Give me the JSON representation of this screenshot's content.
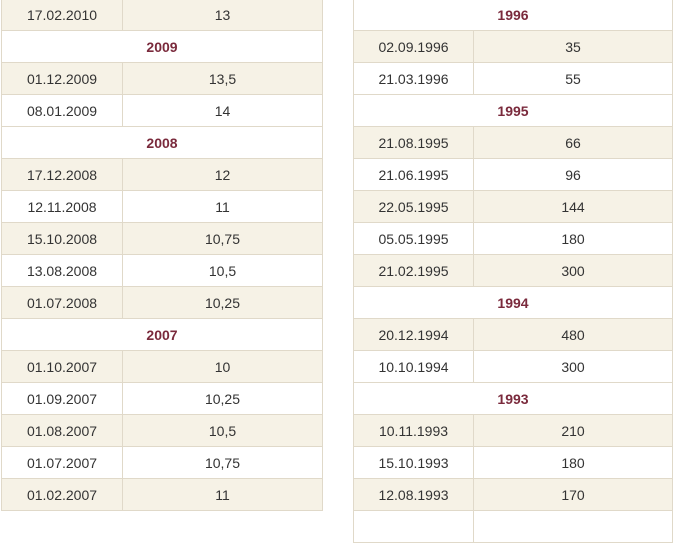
{
  "left_table": [
    {
      "kind": "row",
      "date": "17.02.2010",
      "rate": "13"
    },
    {
      "kind": "year",
      "year": "2009"
    },
    {
      "kind": "row",
      "date": "01.12.2009",
      "rate": "13,5"
    },
    {
      "kind": "row",
      "date": "08.01.2009",
      "rate": "14"
    },
    {
      "kind": "year",
      "year": "2008"
    },
    {
      "kind": "row",
      "date": "17.12.2008",
      "rate": "12"
    },
    {
      "kind": "row",
      "date": "12.11.2008",
      "rate": "11"
    },
    {
      "kind": "row",
      "date": "15.10.2008",
      "rate": "10,75"
    },
    {
      "kind": "row",
      "date": "13.08.2008",
      "rate": "10,5"
    },
    {
      "kind": "row",
      "date": "01.07.2008",
      "rate": "10,25"
    },
    {
      "kind": "year",
      "year": "2007"
    },
    {
      "kind": "row",
      "date": "01.10.2007",
      "rate": "10"
    },
    {
      "kind": "row",
      "date": "01.09.2007",
      "rate": "10,25"
    },
    {
      "kind": "row",
      "date": "01.08.2007",
      "rate": "10,5"
    },
    {
      "kind": "row",
      "date": "01.07.2007",
      "rate": "10,75"
    },
    {
      "kind": "row",
      "date": "01.02.2007",
      "rate": "11"
    }
  ],
  "right_table": [
    {
      "kind": "year",
      "year": "1996"
    },
    {
      "kind": "row",
      "date": "02.09.1996",
      "rate": "35"
    },
    {
      "kind": "row",
      "date": "21.03.1996",
      "rate": "55"
    },
    {
      "kind": "year",
      "year": "1995"
    },
    {
      "kind": "row",
      "date": "21.08.1995",
      "rate": "66"
    },
    {
      "kind": "row",
      "date": "21.06.1995",
      "rate": "96"
    },
    {
      "kind": "row",
      "date": "22.05.1995",
      "rate": "144"
    },
    {
      "kind": "row",
      "date": "05.05.1995",
      "rate": "180"
    },
    {
      "kind": "row",
      "date": "21.02.1995",
      "rate": "300"
    },
    {
      "kind": "year",
      "year": "1994"
    },
    {
      "kind": "row",
      "date": "20.12.1994",
      "rate": "480"
    },
    {
      "kind": "row",
      "date": "10.10.1994",
      "rate": "300"
    },
    {
      "kind": "year",
      "year": "1993"
    },
    {
      "kind": "row",
      "date": "10.11.1993",
      "rate": "210"
    },
    {
      "kind": "row",
      "date": "15.10.1993",
      "rate": "180"
    },
    {
      "kind": "row",
      "date": "12.08.1993",
      "rate": "170"
    },
    {
      "kind": "row",
      "date": "",
      "rate": ""
    }
  ],
  "colors": {
    "year_text": "#7a2a3c",
    "shaded_row": "#f6f2e6",
    "border": "#e0d9c9"
  }
}
